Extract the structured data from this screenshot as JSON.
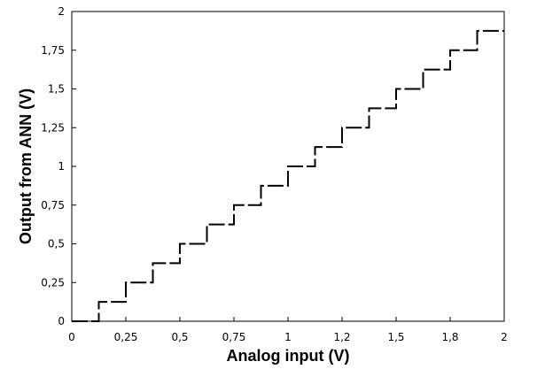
{
  "chart_data": {
    "type": "line",
    "title": "",
    "xlabel": "Analog input (V)",
    "ylabel": "Output from ANN (V)",
    "xlim": [
      0,
      2
    ],
    "ylim": [
      0,
      2
    ],
    "grid": false,
    "x_ticks": [
      {
        "value": 0,
        "label": "0"
      },
      {
        "value": 0.25,
        "label": "0,25"
      },
      {
        "value": 0.5,
        "label": "0,5"
      },
      {
        "value": 0.75,
        "label": "0,75"
      },
      {
        "value": 1,
        "label": "1"
      },
      {
        "value": 1.25,
        "label": "1,2"
      },
      {
        "value": 1.5,
        "label": "1,5"
      },
      {
        "value": 1.75,
        "label": "1,8"
      },
      {
        "value": 2,
        "label": "2"
      }
    ],
    "y_ticks": [
      {
        "value": 0,
        "label": "0"
      },
      {
        "value": 0.25,
        "label": "0,25"
      },
      {
        "value": 0.5,
        "label": "0,5"
      },
      {
        "value": 0.75,
        "label": "0,75"
      },
      {
        "value": 1,
        "label": "1"
      },
      {
        "value": 1.25,
        "label": "1,25"
      },
      {
        "value": 1.5,
        "label": "1,5"
      },
      {
        "value": 1.75,
        "label": "1,75"
      },
      {
        "value": 2,
        "label": "2"
      }
    ],
    "series": [
      {
        "style": "dashed step",
        "color": "#000000",
        "steps": [
          {
            "x_start": 0.0,
            "x_end": 0.125,
            "y": 0.0
          },
          {
            "x_start": 0.125,
            "x_end": 0.25,
            "y": 0.125
          },
          {
            "x_start": 0.25,
            "x_end": 0.375,
            "y": 0.25
          },
          {
            "x_start": 0.375,
            "x_end": 0.5,
            "y": 0.375
          },
          {
            "x_start": 0.5,
            "x_end": 0.625,
            "y": 0.5
          },
          {
            "x_start": 0.625,
            "x_end": 0.75,
            "y": 0.625
          },
          {
            "x_start": 0.75,
            "x_end": 0.875,
            "y": 0.75
          },
          {
            "x_start": 0.875,
            "x_end": 1.0,
            "y": 0.875
          },
          {
            "x_start": 1.0,
            "x_end": 1.125,
            "y": 1.0
          },
          {
            "x_start": 1.125,
            "x_end": 1.25,
            "y": 1.125
          },
          {
            "x_start": 1.25,
            "x_end": 1.375,
            "y": 1.25
          },
          {
            "x_start": 1.375,
            "x_end": 1.5,
            "y": 1.375
          },
          {
            "x_start": 1.5,
            "x_end": 1.625,
            "y": 1.5
          },
          {
            "x_start": 1.625,
            "x_end": 1.75,
            "y": 1.625
          },
          {
            "x_start": 1.75,
            "x_end": 1.875,
            "y": 1.75
          },
          {
            "x_start": 1.875,
            "x_end": 2.0,
            "y": 1.875
          }
        ]
      }
    ]
  }
}
